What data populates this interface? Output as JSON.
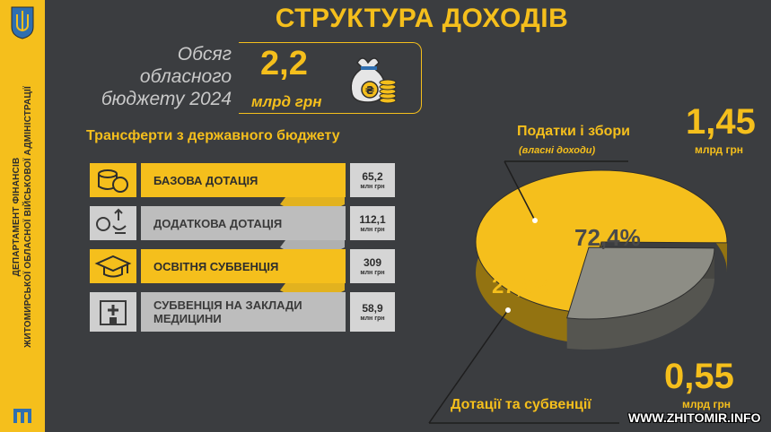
{
  "title": "СТРУКТУРА ДОХОДІВ",
  "sidebar": {
    "line1": "ДЕПАРТАМЕНТ ФІНАНСІВ",
    "line2": "ЖИТОМИРСЬКОЇ ОБЛАСНОЇ ВІЙСЬКОВОЇ АДМІНІСТРАЦІЇ",
    "crest_icon": "trident-crest-icon"
  },
  "budget": {
    "label_line1": "Обсяг",
    "label_line2": "обласного",
    "label_line3": "бюджету 2024",
    "value": "2,2",
    "unit": "млрд грн",
    "icon": "money-bag-coins-icon"
  },
  "transfers": {
    "title": "Трансферти з державного бюджету",
    "unit": "млн грн",
    "items": [
      {
        "label": "БАЗОВА ДОТАЦІЯ",
        "value": "65,2",
        "icon": "coins-stack-icon",
        "style": "y"
      },
      {
        "label": "ДОДАТКОВА ДОТАЦІЯ",
        "value": "112,1",
        "icon": "hands-money-icon",
        "style": "g"
      },
      {
        "label": "ОСВІТНЯ СУБВЕНЦІЯ",
        "value": "309",
        "icon": "graduation-cap-icon",
        "style": "y"
      },
      {
        "label": "СУБВЕНЦІЯ НА ЗАКЛАДИ МЕДИЦИНИ",
        "value": "58,9",
        "icon": "hospital-icon",
        "style": "g"
      }
    ]
  },
  "chart_data": {
    "type": "pie",
    "slices": [
      {
        "name": "Податки і збори",
        "sub": "(власні доходи)",
        "value": 72.4,
        "label": "72,4%",
        "amount": "1,45",
        "amount_unit": "млрд грн",
        "color": "#f5bf1c"
      },
      {
        "name": "Дотації та субвенції",
        "value": 27.6,
        "label": "27,6%",
        "amount": "0,55",
        "amount_unit": "млрд грн",
        "color": "#8d8d85"
      }
    ]
  },
  "watermark": "WWW.ZHITOMIR.INFO",
  "colors": {
    "accent": "#f5bf1c",
    "background": "#3b3d40",
    "gray": "#bdbdbd"
  }
}
